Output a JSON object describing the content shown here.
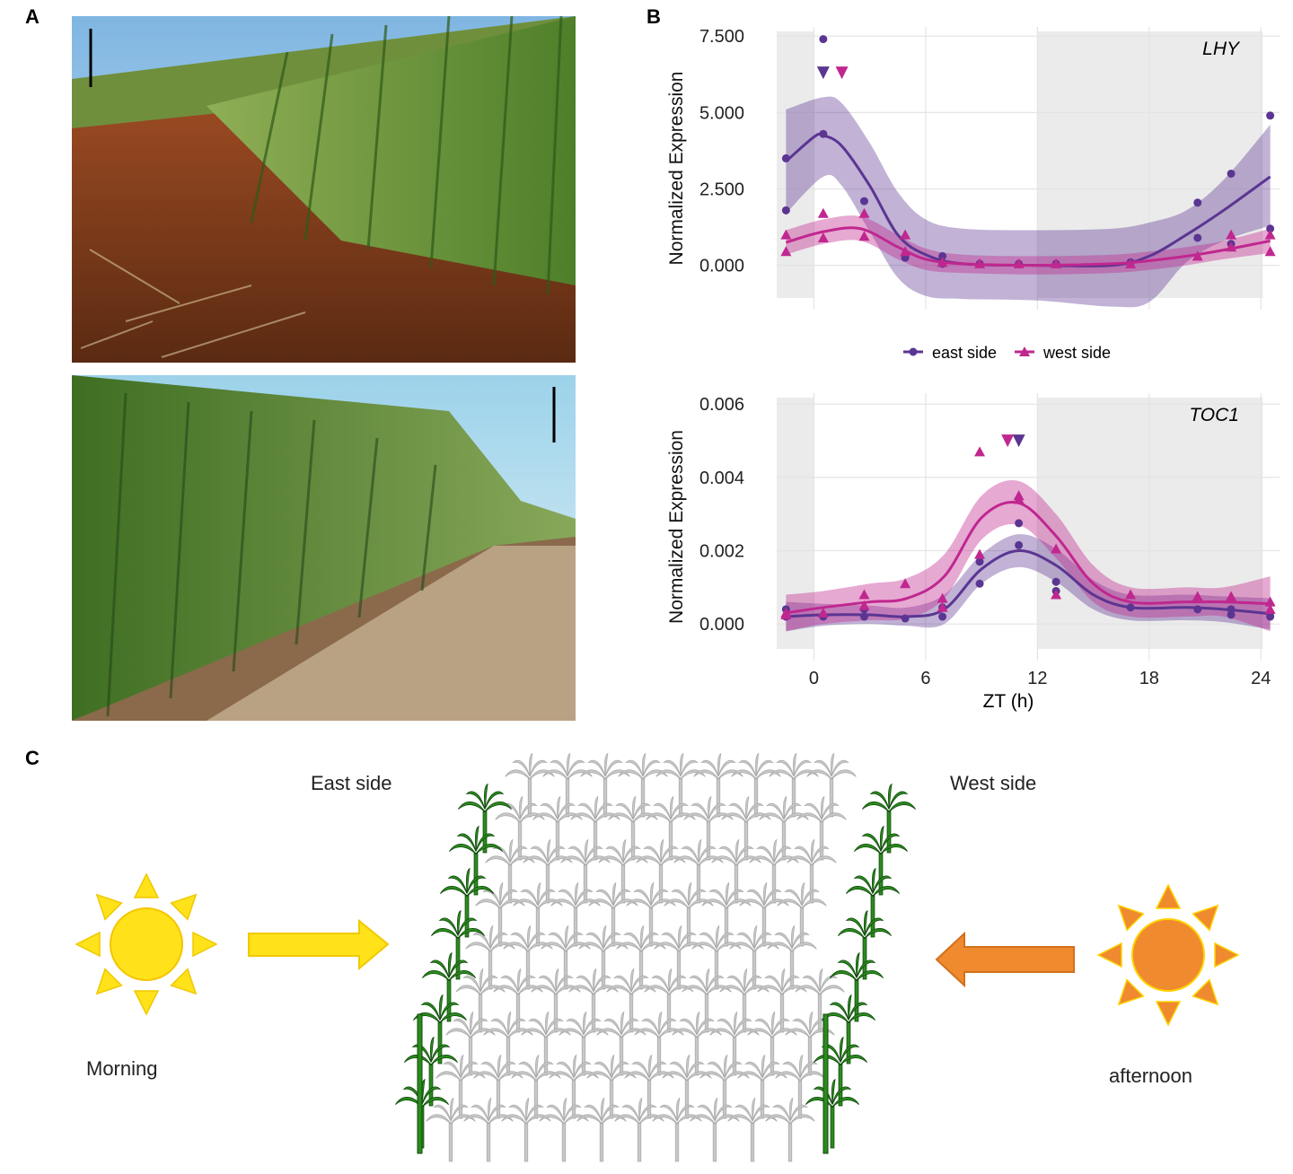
{
  "panels": {
    "a": "A",
    "b": "B",
    "c": "C"
  },
  "colors": {
    "east": "#5b3592",
    "west": "#c0278f",
    "morning_sun": "#ffe21a",
    "afternoon_sun": "#ef8a2e",
    "panel_bg": "#ebebeb",
    "plant_green": "#2c8a1f",
    "plant_gray": "#c8c8c8"
  },
  "legend": {
    "east": "east side",
    "west": "west side"
  },
  "diagram": {
    "east_label": "East side",
    "west_label": "West side",
    "morning_label": "Morning",
    "afternoon_label": "afternoon"
  },
  "chart_data": [
    {
      "type": "scatter",
      "title": "LHY",
      "ylabel": "Normalized Expression",
      "xlabel": "",
      "ylim": [
        -1.45,
        7.8
      ],
      "xlim": [
        -2,
        25
      ],
      "yticks": [
        "0.000",
        "2.500",
        "5.000",
        "7.500"
      ],
      "ytick_values": [
        0,
        2.5,
        5,
        7.5
      ],
      "xticks": [
        0,
        6,
        12,
        18,
        24
      ],
      "shaded_x": [
        [
          -2,
          0
        ],
        [
          12,
          24.1
        ]
      ],
      "series": [
        {
          "name": "east side",
          "marker": "circle",
          "points": [
            [
              -1.5,
              3.5
            ],
            [
              -1.5,
              1.8
            ],
            [
              0.5,
              7.4
            ],
            [
              0.5,
              4.3
            ],
            [
              2.7,
              2.1
            ],
            [
              4.9,
              0.25
            ],
            [
              6.9,
              0.3
            ],
            [
              6.9,
              0.05
            ],
            [
              8.9,
              0.05
            ],
            [
              11,
              0.05
            ],
            [
              13,
              0.05
            ],
            [
              17,
              0.1
            ],
            [
              20.6,
              2.05
            ],
            [
              20.6,
              0.9
            ],
            [
              22.4,
              3.0
            ],
            [
              22.4,
              0.7
            ],
            [
              24.5,
              4.9
            ],
            [
              24.5,
              1.2
            ]
          ],
          "trend": [
            [
              -1.5,
              3.4
            ],
            [
              0,
              4.2
            ],
            [
              0.5,
              4.25
            ],
            [
              1.5,
              3.9
            ],
            [
              3,
              2.6
            ],
            [
              4.5,
              1.0
            ],
            [
              6,
              0.35
            ],
            [
              8,
              0.05
            ],
            [
              12,
              0
            ],
            [
              16,
              0
            ],
            [
              18,
              0.3
            ],
            [
              20,
              1.0
            ],
            [
              22,
              1.8
            ],
            [
              24.5,
              2.9
            ]
          ],
          "band_upper": [
            [
              -1.5,
              5.1
            ],
            [
              0.5,
              5.5
            ],
            [
              1.5,
              5.3
            ],
            [
              3,
              4.0
            ],
            [
              4.5,
              2.4
            ],
            [
              6,
              1.5
            ],
            [
              8,
              1.2
            ],
            [
              12,
              1.15
            ],
            [
              16,
              1.2
            ],
            [
              18,
              1.4
            ],
            [
              20,
              1.8
            ],
            [
              22,
              2.8
            ],
            [
              24.5,
              4.6
            ]
          ],
          "band_lower": [
            [
              -1.5,
              1.7
            ],
            [
              0.5,
              2.9
            ],
            [
              1.5,
              2.6
            ],
            [
              3,
              1.1
            ],
            [
              4.5,
              -0.4
            ],
            [
              6,
              -1.0
            ],
            [
              8,
              -1.1
            ],
            [
              12,
              -1.15
            ],
            [
              16,
              -1.35
            ],
            [
              18,
              -1.2
            ],
            [
              20,
              0.1
            ],
            [
              22,
              0.8
            ],
            [
              24.5,
              1.3
            ]
          ],
          "offscale": [
            [
              0.5,
              6.3
            ]
          ]
        },
        {
          "name": "west side",
          "marker": "triangle",
          "points": [
            [
              -1.5,
              1.0
            ],
            [
              -1.5,
              0.45
            ],
            [
              0.5,
              1.7
            ],
            [
              0.5,
              0.9
            ],
            [
              2.7,
              1.7
            ],
            [
              2.7,
              0.95
            ],
            [
              4.9,
              1.0
            ],
            [
              4.9,
              0.45
            ],
            [
              6.9,
              0.1
            ],
            [
              8.9,
              0.05
            ],
            [
              11,
              0.05
            ],
            [
              13,
              0.05
            ],
            [
              17,
              0.05
            ],
            [
              20.6,
              0.3
            ],
            [
              22.4,
              1.0
            ],
            [
              22.4,
              0.6
            ],
            [
              24.5,
              1.0
            ],
            [
              24.5,
              0.45
            ]
          ],
          "trend": [
            [
              -1.5,
              0.75
            ],
            [
              0.5,
              1.1
            ],
            [
              2.5,
              1.2
            ],
            [
              4.5,
              0.6
            ],
            [
              6,
              0.2
            ],
            [
              8,
              0.05
            ],
            [
              12,
              0
            ],
            [
              16,
              0.05
            ],
            [
              18,
              0.15
            ],
            [
              20,
              0.3
            ],
            [
              22,
              0.5
            ],
            [
              24.5,
              0.8
            ]
          ],
          "band_upper": [
            [
              -1.5,
              1.15
            ],
            [
              0.5,
              1.5
            ],
            [
              2.5,
              1.6
            ],
            [
              4.5,
              1.0
            ],
            [
              6,
              0.55
            ],
            [
              8,
              0.35
            ],
            [
              12,
              0.3
            ],
            [
              16,
              0.35
            ],
            [
              18,
              0.45
            ],
            [
              20,
              0.6
            ],
            [
              22,
              0.8
            ],
            [
              24.5,
              1.2
            ]
          ],
          "band_lower": [
            [
              -1.5,
              0.35
            ],
            [
              0.5,
              0.7
            ],
            [
              2.5,
              0.8
            ],
            [
              4.5,
              0.2
            ],
            [
              6,
              -0.15
            ],
            [
              8,
              -0.25
            ],
            [
              12,
              -0.3
            ],
            [
              16,
              -0.25
            ],
            [
              18,
              -0.15
            ],
            [
              20,
              0.0
            ],
            [
              22,
              0.2
            ],
            [
              24.5,
              0.4
            ]
          ],
          "offscale": [
            [
              1.5,
              6.3
            ]
          ]
        }
      ]
    },
    {
      "type": "scatter",
      "title": "TOC1",
      "ylabel": "Normalized Expression",
      "xlabel": "ZT (h)",
      "ylim": [
        -0.001,
        0.0063
      ],
      "xlim": [
        -2,
        25
      ],
      "yticks": [
        "0.000",
        "0.002",
        "0.004",
        "0.006"
      ],
      "ytick_values": [
        0,
        0.002,
        0.004,
        0.006
      ],
      "xticks": [
        0,
        6,
        12,
        18,
        24
      ],
      "shaded_x": [
        [
          -2,
          0
        ],
        [
          12,
          24.1
        ]
      ],
      "series": [
        {
          "name": "east side",
          "marker": "circle",
          "points": [
            [
              -1.5,
              0.0004
            ],
            [
              -1.5,
              0.0002
            ],
            [
              0.5,
              0.0002
            ],
            [
              2.7,
              0.0004
            ],
            [
              2.7,
              0.0002
            ],
            [
              4.9,
              0.00015
            ],
            [
              6.9,
              0.00045
            ],
            [
              6.9,
              0.0002
            ],
            [
              8.9,
              0.0017
            ],
            [
              8.9,
              0.0011
            ],
            [
              11,
              0.00275
            ],
            [
              11,
              0.00215
            ],
            [
              13,
              0.00115
            ],
            [
              13,
              0.0009
            ],
            [
              17,
              0.00045
            ],
            [
              20.6,
              0.0004
            ],
            [
              22.4,
              0.0004
            ],
            [
              22.4,
              0.00025
            ],
            [
              24.5,
              0.0003
            ],
            [
              24.5,
              0.0002
            ]
          ],
          "trend": [
            [
              -1.5,
              0.0002
            ],
            [
              0.5,
              0.00025
            ],
            [
              3,
              0.00025
            ],
            [
              5,
              0.0002
            ],
            [
              7,
              0.0004
            ],
            [
              9,
              0.0015
            ],
            [
              11,
              0.002
            ],
            [
              13,
              0.0016
            ],
            [
              15,
              0.0008
            ],
            [
              17,
              0.00045
            ],
            [
              20,
              0.00045
            ],
            [
              22,
              0.0004
            ],
            [
              24.5,
              0.00028
            ]
          ],
          "band_upper": [
            [
              -1.5,
              0.0006
            ],
            [
              0.5,
              0.00055
            ],
            [
              3,
              0.0005
            ],
            [
              5,
              0.00045
            ],
            [
              7,
              0.0008
            ],
            [
              9,
              0.0019
            ],
            [
              11,
              0.00245
            ],
            [
              13,
              0.00205
            ],
            [
              15,
              0.0012
            ],
            [
              17,
              0.0008
            ],
            [
              20,
              0.0008
            ],
            [
              22,
              0.00075
            ],
            [
              24.5,
              0.0007
            ]
          ],
          "band_lower": [
            [
              -1.5,
              -0.0002
            ],
            [
              0.5,
              -5e-05
            ],
            [
              3,
              0.0
            ],
            [
              5,
              -5e-05
            ],
            [
              7,
              0.0
            ],
            [
              9,
              0.0011
            ],
            [
              11,
              0.00155
            ],
            [
              13,
              0.00115
            ],
            [
              15,
              0.0004
            ],
            [
              17,
              0.0001
            ],
            [
              20,
              0.0001
            ],
            [
              22,
              5e-05
            ],
            [
              24.5,
              -0.00015
            ]
          ],
          "offscale": [
            [
              11,
              0.005
            ]
          ]
        },
        {
          "name": "west side",
          "marker": "triangle",
          "points": [
            [
              -1.5,
              0.0003
            ],
            [
              -1.5,
              0.00025
            ],
            [
              0.5,
              0.0003
            ],
            [
              2.7,
              0.0008
            ],
            [
              2.7,
              0.0005
            ],
            [
              4.9,
              0.0011
            ],
            [
              6.9,
              0.0007
            ],
            [
              6.9,
              0.00045
            ],
            [
              8.9,
              0.0047
            ],
            [
              8.9,
              0.0019
            ],
            [
              11,
              0.0035
            ],
            [
              11,
              0.0034
            ],
            [
              13,
              0.00205
            ],
            [
              13,
              0.0008
            ],
            [
              17,
              0.0008
            ],
            [
              20.6,
              0.00075
            ],
            [
              22.4,
              0.00075
            ],
            [
              24.5,
              0.0006
            ],
            [
              24.5,
              0.0004
            ]
          ],
          "trend": [
            [
              -1.5,
              0.0003
            ],
            [
              0.5,
              0.00045
            ],
            [
              3,
              0.0006
            ],
            [
              5,
              0.0007
            ],
            [
              7,
              0.0013
            ],
            [
              9,
              0.0029
            ],
            [
              11,
              0.0033
            ],
            [
              13,
              0.0024
            ],
            [
              15,
              0.0011
            ],
            [
              17,
              0.0006
            ],
            [
              20,
              0.0006
            ],
            [
              22,
              0.0006
            ],
            [
              24.5,
              0.00055
            ]
          ],
          "band_upper": [
            [
              -1.5,
              0.0008
            ],
            [
              0.5,
              0.0009
            ],
            [
              3,
              0.0011
            ],
            [
              5,
              0.00125
            ],
            [
              7,
              0.0019
            ],
            [
              9,
              0.0035
            ],
            [
              11,
              0.0039
            ],
            [
              13,
              0.003
            ],
            [
              15,
              0.0016
            ],
            [
              17,
              0.001
            ],
            [
              20,
              0.001
            ],
            [
              22,
              0.001
            ],
            [
              24.5,
              0.0013
            ]
          ],
          "band_lower": [
            [
              -1.5,
              -0.0002
            ],
            [
              0.5,
              0.0
            ],
            [
              3,
              0.0001
            ],
            [
              5,
              0.00015
            ],
            [
              7,
              0.0007
            ],
            [
              9,
              0.0023
            ],
            [
              11,
              0.0027
            ],
            [
              13,
              0.0018
            ],
            [
              15,
              0.0006
            ],
            [
              17,
              0.0002
            ],
            [
              20,
              0.0002
            ],
            [
              22,
              0.0002
            ],
            [
              24.5,
              -0.0002
            ]
          ],
          "offscale": [
            [
              10.4,
              0.005
            ]
          ]
        }
      ]
    }
  ]
}
